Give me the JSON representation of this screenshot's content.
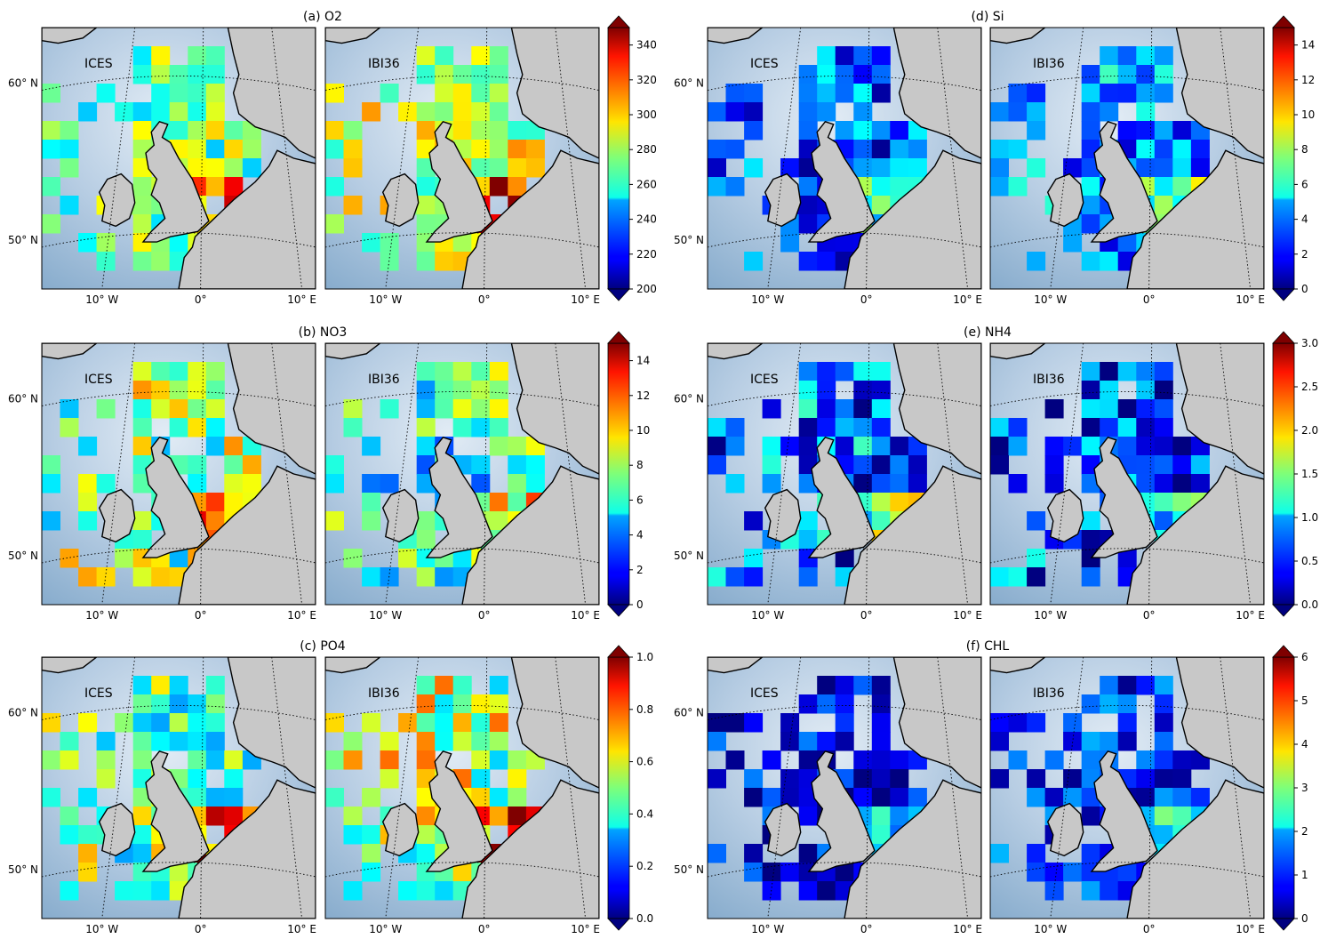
{
  "panels": [
    {
      "id": "a",
      "title": "(a) O2",
      "cmap_min": 200,
      "cmap_max": 350,
      "cbar_ticks": [
        "200",
        "220",
        "240",
        "260",
        "280",
        "300",
        "320",
        "340"
      ],
      "cbar_tick_values": [
        200,
        220,
        240,
        260,
        280,
        300,
        320,
        340
      ],
      "mean": [
        0.5,
        0.58
      ],
      "spread": 0.18,
      "left_label": "ICES",
      "right_label": "IBI36"
    },
    {
      "id": "b",
      "title": "(b) NO3",
      "cmap_min": 0,
      "cmap_max": 15,
      "cbar_ticks": [
        "0",
        "2",
        "4",
        "6",
        "8",
        "10",
        "12",
        "14"
      ],
      "cbar_tick_values": [
        0,
        2,
        4,
        6,
        8,
        10,
        12,
        14
      ],
      "mean": [
        0.52,
        0.42
      ],
      "spread": 0.22,
      "left_label": "ICES",
      "right_label": "IBI36"
    },
    {
      "id": "c",
      "title": "(c) PO4",
      "cmap_min": 0,
      "cmap_max": 1.0,
      "cbar_ticks": [
        "0.0",
        "0.2",
        "0.4",
        "0.6",
        "0.8",
        "1.0"
      ],
      "cbar_tick_values": [
        0,
        0.2,
        0.4,
        0.6,
        0.8,
        1.0
      ],
      "mean": [
        0.5,
        0.55
      ],
      "spread": 0.22,
      "left_label": "ICES",
      "right_label": "IBI36"
    },
    {
      "id": "d",
      "title": "(d) Si",
      "cmap_min": 0,
      "cmap_max": 15,
      "cbar_ticks": [
        "0",
        "2",
        "4",
        "6",
        "8",
        "10",
        "12",
        "14"
      ],
      "cbar_tick_values": [
        0,
        2,
        4,
        6,
        8,
        10,
        12,
        14
      ],
      "mean": [
        0.2,
        0.26
      ],
      "spread": 0.18,
      "left_label": "ICES",
      "right_label": "IBI36"
    },
    {
      "id": "e",
      "title": "(e) NH4",
      "cmap_min": 0,
      "cmap_max": 3.0,
      "cbar_ticks": [
        "0.0",
        "0.5",
        "1.0",
        "1.5",
        "2.0",
        "2.5",
        "3.0"
      ],
      "cbar_tick_values": [
        0,
        0.5,
        1.0,
        1.5,
        2.0,
        2.5,
        3.0
      ],
      "mean": [
        0.22,
        0.18
      ],
      "spread": 0.22,
      "left_label": "ICES",
      "right_label": "IBI36"
    },
    {
      "id": "f",
      "title": "(f) CHL",
      "cmap_min": 0,
      "cmap_max": 6,
      "cbar_ticks": [
        "0",
        "1",
        "2",
        "3",
        "4",
        "5",
        "6"
      ],
      "cbar_tick_values": [
        0,
        1,
        2,
        3,
        4,
        5,
        6
      ],
      "mean": [
        0.1,
        0.16
      ],
      "spread": 0.15,
      "left_label": "ICES",
      "right_label": "IBI36"
    }
  ],
  "axes": {
    "lat_labels": [
      "60° N",
      "50° N"
    ],
    "lon_labels": [
      "10° W",
      "0°",
      "10° E"
    ]
  },
  "colors": {
    "land": "#c8c8c8",
    "sea_light": "#dbe6f1",
    "sea_dark": "#7ea6c9",
    "colormap": "jet"
  }
}
